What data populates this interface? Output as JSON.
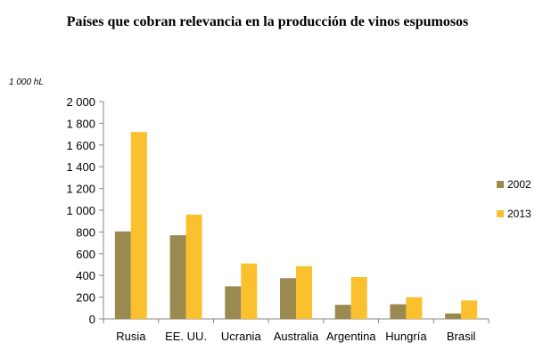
{
  "chart_data": {
    "type": "bar",
    "title": "Países que cobran relevancia en la producción de vinos espumosos",
    "ylabel": "1 000 hL",
    "xlabel": "",
    "ylim": [
      0,
      2000
    ],
    "ytick_step": 200,
    "ytick_labels": [
      "0",
      "200",
      "400",
      "600",
      "800",
      "1 000",
      "1 200",
      "1 400",
      "1 600",
      "1 800",
      "2 000"
    ],
    "categories": [
      "Rusia",
      "EE. UU.",
      "Ucrania",
      "Australia",
      "Argentina",
      "Hungría",
      "Brasil"
    ],
    "series": [
      {
        "name": "2002",
        "color": "#9b8a4f",
        "values": [
          805,
          770,
          300,
          375,
          130,
          135,
          50
        ]
      },
      {
        "name": "2013",
        "color": "#fbc02d",
        "values": [
          1720,
          960,
          510,
          485,
          385,
          200,
          170
        ]
      }
    ],
    "grid": false,
    "legend_position": "right"
  }
}
